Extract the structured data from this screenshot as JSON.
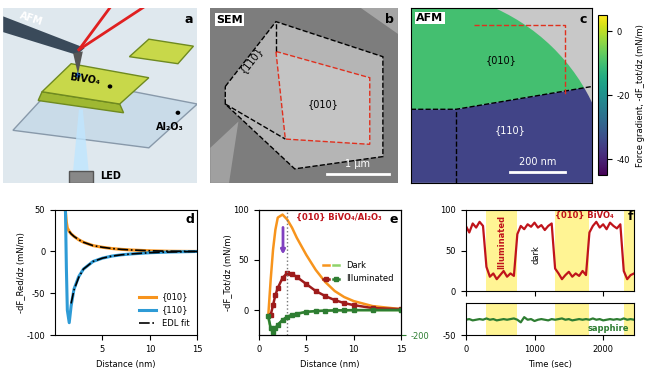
{
  "images": [
    {
      "letter": "a",
      "type": "schematic",
      "labels": {
        "probe": "AFM",
        "crystal": "BiVO₄",
        "substrate": "Al₂O₃",
        "light": "LED"
      }
    },
    {
      "letter": "b",
      "type": "micrograph",
      "title": "SEM",
      "labels": {
        "side_face": "{110}",
        "top_face": "{010}"
      },
      "scale_bar": "1 µm"
    },
    {
      "letter": "c",
      "type": "force_map",
      "title": "AFM",
      "labels": {
        "top_face": "{010}",
        "side_face": "{110}"
      },
      "scale_bar": "200 nm",
      "region_values": {
        "top_face": -10,
        "side_face": -35
      },
      "colorbar": {
        "label": "Force gradient, -dF_tot/dz (mN/m)",
        "range": [
          -45,
          5
        ],
        "ticks": [
          0,
          -20,
          -40
        ]
      }
    }
  ],
  "chart_data": [
    {
      "letter": "d",
      "type": "line",
      "x": [
        1.1,
        1.2,
        1.3,
        1.5,
        1.7,
        2,
        2.5,
        3,
        4,
        5,
        6,
        7,
        8,
        10,
        12,
        15
      ],
      "xlim": [
        0,
        15
      ],
      "xticks": [
        5,
        10,
        15
      ],
      "ylim": [
        -100,
        50
      ],
      "yticks": [
        -100,
        -50,
        0,
        50
      ],
      "xlabel": "Distance (nm)",
      "ylabel": "-dF_Red/dz (mN/m)",
      "legend": "lower right",
      "series": [
        {
          "name": "{010}",
          "color": "#f7941d",
          "line_style": "solid",
          "values": [
            48,
            35,
            28,
            24,
            21,
            18,
            14,
            11,
            7,
            5,
            3.5,
            2.5,
            1.8,
            0.8,
            0.3,
            0
          ]
        },
        {
          "name": "{110}",
          "color": "#2e9bd6",
          "line_style": "solid",
          "values": [
            50,
            -20,
            -70,
            -85,
            -65,
            -45,
            -30,
            -21,
            -12,
            -8,
            -5.5,
            -4,
            -3,
            -1.5,
            -0.7,
            0
          ]
        },
        {
          "name": "EDL fit",
          "color": "#000000",
          "line_style": "dashdot",
          "values": [
            null,
            null,
            null,
            24,
            21,
            18,
            14,
            11,
            7,
            5,
            3.5,
            2.5,
            1.8,
            0.8,
            0.3,
            0
          ]
        },
        {
          "name": "EDL fit",
          "color": "#000000",
          "line_style": "dashdot",
          "values": [
            null,
            null,
            null,
            null,
            -62,
            -46,
            -31,
            -21,
            -12,
            -8,
            -5.5,
            -4,
            -3,
            -1.5,
            -0.7,
            0
          ]
        }
      ]
    },
    {
      "letter": "e",
      "type": "line",
      "title": "{010} BiVO₄/Al₂O₃",
      "x": [
        1.0,
        1.25,
        1.5,
        1.75,
        2,
        2.5,
        3,
        3.5,
        4,
        5,
        6,
        7,
        8,
        9,
        10,
        12,
        15
      ],
      "xlim": [
        0,
        15
      ],
      "xticks": [
        0,
        5,
        10,
        15
      ],
      "ylim": [
        -25,
        100
      ],
      "yticks": [
        0,
        50,
        100
      ],
      "y2lim": [
        -200,
        800
      ],
      "y2ticks": [
        -200
      ],
      "xlabel": "Distance (nm)",
      "ylabel": "-dF_Tot/dz (mN/m)",
      "vline": 3,
      "legend": "center right",
      "legend_entries": [
        {
          "name": "Dark",
          "colors": [
            "#f7941d",
            "#8fd36a"
          ]
        },
        {
          "name": "Illuminated",
          "colors": [
            "#9e1b1b",
            "#2e7d32"
          ],
          "marker": "square"
        }
      ],
      "series": [
        {
          "color": "#f7941d",
          "line_style": "solid",
          "values": [
            -5,
            30,
            60,
            80,
            92,
            95,
            90,
            82,
            72,
            55,
            40,
            28,
            19,
            13,
            9,
            4,
            1
          ]
        },
        {
          "color": "#9e1b1b",
          "line_style": "solid",
          "marker": "square",
          "values": [
            null,
            -5,
            5,
            15,
            22,
            32,
            37,
            36,
            33,
            26,
            19,
            14,
            10,
            7,
            5,
            2,
            1
          ]
        },
        {
          "color": "#8fd36a",
          "line_style": "solid",
          "axis": "y2",
          "values": [
            -60,
            -150,
            -180,
            -150,
            -120,
            -80,
            -55,
            -40,
            -30,
            -15,
            -8,
            -4,
            -2,
            -1,
            0,
            0,
            0
          ]
        },
        {
          "color": "#2e7d32",
          "line_style": "solid",
          "marker": "square",
          "axis": "y2",
          "values": [
            -50,
            -140,
            -175,
            -145,
            -115,
            -78,
            -52,
            -38,
            -28,
            -14,
            -7,
            -4,
            -2,
            -1,
            0,
            0,
            0
          ]
        }
      ]
    },
    {
      "letter": "f",
      "type": "line",
      "x": [
        0,
        50,
        100,
        150,
        200,
        250,
        300,
        350,
        400,
        450,
        500,
        550,
        600,
        650,
        700,
        750,
        800,
        850,
        900,
        950,
        1000,
        1050,
        1100,
        1150,
        1200,
        1250,
        1300,
        1350,
        1400,
        1450,
        1500,
        1550,
        1600,
        1650,
        1700,
        1750,
        1800,
        1850,
        1900,
        1950,
        2000,
        2050,
        2100,
        2150,
        2200,
        2250,
        2300,
        2350,
        2400,
        2450
      ],
      "xlim": [
        0,
        2450
      ],
      "xticks": [
        0,
        1000,
        2000
      ],
      "xlabel": "Time (sec)",
      "illuminated_intervals": [
        [
          300,
          750
        ],
        [
          1300,
          1800
        ],
        [
          2300,
          2450
        ]
      ],
      "annotations": {
        "illuminated": "Illuminated",
        "dark": "dark"
      },
      "series": [
        {
          "name": "{010} BiVO₄",
          "color": "#c0141b",
          "line_style": "solid",
          "ylim": [
            0,
            100
          ],
          "yticks": [
            0,
            50,
            100
          ],
          "values": [
            80,
            72,
            83,
            78,
            85,
            80,
            30,
            18,
            22,
            15,
            20,
            25,
            18,
            22,
            19,
            70,
            80,
            76,
            82,
            79,
            84,
            78,
            81,
            75,
            80,
            83,
            28,
            22,
            15,
            20,
            24,
            18,
            22,
            19,
            25,
            20,
            72,
            80,
            85,
            78,
            82,
            76,
            84,
            80,
            77,
            82,
            25,
            15,
            20,
            22
          ]
        },
        {
          "name": "sapphire",
          "color": "#2e7d32",
          "line_style": "solid",
          "ylim": [
            -50,
            0
          ],
          "yticks": [
            -50
          ],
          "values": [
            -26,
            -25,
            -27,
            -26,
            -25,
            -26,
            -24,
            -26,
            -25,
            -27,
            -26,
            -25,
            -26,
            -25,
            -24,
            -26,
            -30,
            -22,
            -26,
            -25,
            -28,
            -26,
            -25,
            -26,
            -27,
            -25,
            -26,
            -25,
            -24,
            -26,
            -25,
            -27,
            -26,
            -25,
            -26,
            -25,
            -26,
            -24,
            -26,
            -25,
            -27,
            -26,
            -25,
            -26,
            -25,
            -26,
            -24,
            -26,
            -25,
            -26
          ]
        }
      ]
    }
  ]
}
